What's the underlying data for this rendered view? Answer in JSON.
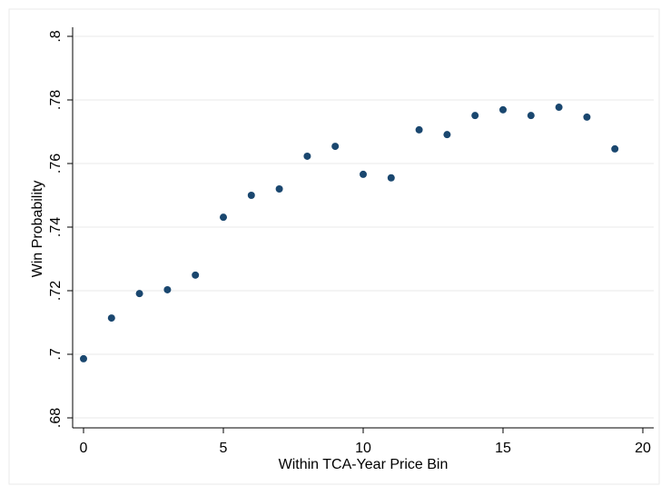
{
  "chart_data": {
    "type": "scatter",
    "x_label": "Within TCA-Year Price Bin",
    "y_label": "Win Probability",
    "x": [
      0,
      1,
      2,
      3,
      4,
      5,
      6,
      7,
      8,
      9,
      10,
      11,
      12,
      13,
      14,
      15,
      16,
      17,
      18,
      19
    ],
    "values": [
      0.6986,
      0.7114,
      0.7191,
      0.7203,
      0.7249,
      0.7431,
      0.75,
      0.752,
      0.7623,
      0.7654,
      0.7566,
      0.7555,
      0.7706,
      0.7691,
      0.7751,
      0.7769,
      0.7751,
      0.7777,
      0.7746,
      0.7646
    ],
    "color": "#1a476f",
    "xlim": [
      0,
      20
    ],
    "xticks": [
      0,
      5,
      10,
      15,
      20
    ],
    "ylim": [
      0.68,
      0.8
    ],
    "yticks": [
      {
        "value": 0.68,
        "label": ".68"
      },
      {
        "value": 0.7,
        "label": ".7"
      },
      {
        "value": 0.72,
        "label": ".72"
      },
      {
        "value": 0.74,
        "label": ".74"
      },
      {
        "value": 0.76,
        "label": ".76"
      },
      {
        "value": 0.78,
        "label": ".78"
      },
      {
        "value": 0.8,
        "label": ".8"
      }
    ],
    "grid": true
  }
}
